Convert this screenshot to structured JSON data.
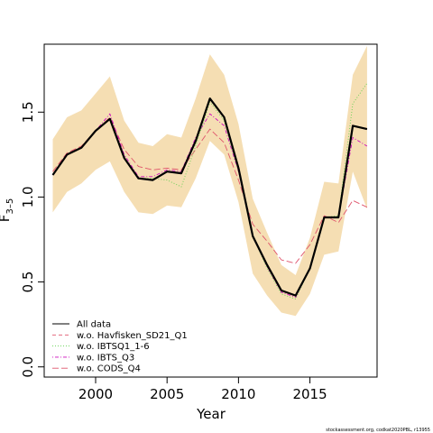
{
  "chart_data": {
    "type": "line",
    "xlabel": "Year",
    "ylabel": "F",
    "ylabel_sub": "3–5",
    "xlim": [
      1996.4,
      2019.7
    ],
    "ylim": [
      -0.06,
      1.9
    ],
    "x_ticks": [
      "2000",
      "2005",
      "2010",
      "2015"
    ],
    "y_ticks": [
      "0.0",
      "0.5",
      "1.0",
      "1.5"
    ],
    "x": [
      1997,
      1998,
      1999,
      2000,
      2001,
      2002,
      2003,
      2004,
      2005,
      2006,
      2007,
      2008,
      2009,
      2010,
      2011,
      2012,
      2013,
      2014,
      2015,
      2016,
      2017,
      2018,
      2019
    ],
    "band": {
      "color": "#F5DEB3",
      "upper": [
        1.34,
        1.47,
        1.51,
        1.61,
        1.71,
        1.45,
        1.32,
        1.3,
        1.37,
        1.35,
        1.58,
        1.84,
        1.72,
        1.43,
        0.99,
        0.79,
        0.6,
        0.54,
        0.76,
        1.09,
        1.08,
        1.72,
        1.89
      ],
      "lower": [
        0.91,
        1.03,
        1.08,
        1.16,
        1.21,
        1.03,
        0.91,
        0.9,
        0.95,
        0.94,
        1.11,
        1.33,
        1.25,
        0.97,
        0.55,
        0.42,
        0.32,
        0.3,
        0.43,
        0.66,
        0.68,
        1.15,
        0.93
      ]
    },
    "series": [
      {
        "name": "All data",
        "color": "#000000",
        "values": [
          1.13,
          1.25,
          1.29,
          1.39,
          1.46,
          1.23,
          1.11,
          1.1,
          1.15,
          1.14,
          1.33,
          1.58,
          1.47,
          1.17,
          0.77,
          0.6,
          0.45,
          0.42,
          0.58,
          0.88,
          0.88,
          1.42,
          1.4
        ]
      },
      {
        "name": "w.o. Havfisken_SD21_Q1",
        "color": "#DF536B",
        "values": [
          1.13,
          1.25,
          1.29,
          1.39,
          1.46,
          1.23,
          1.11,
          1.1,
          1.15,
          1.14,
          1.33,
          1.58,
          1.47,
          1.17,
          0.77,
          0.6,
          0.45,
          0.42,
          0.58,
          0.88,
          0.88,
          1.42,
          1.4
        ]
      },
      {
        "name": "w.o. IBTSQ1_1-6",
        "color": "#61D04F",
        "values": [
          1.13,
          1.25,
          1.29,
          1.39,
          1.46,
          1.23,
          1.11,
          1.11,
          1.1,
          1.06,
          1.3,
          1.56,
          1.45,
          1.15,
          0.77,
          0.58,
          0.43,
          0.4,
          0.58,
          0.88,
          0.89,
          1.55,
          1.67
        ]
      },
      {
        "name": "w.o. IBTS_Q3",
        "color": "#CD0BBC",
        "values": [
          1.13,
          1.25,
          1.29,
          1.39,
          1.49,
          1.25,
          1.12,
          1.12,
          1.16,
          1.15,
          1.35,
          1.49,
          1.42,
          1.15,
          0.77,
          0.59,
          0.44,
          0.41,
          0.58,
          0.88,
          0.88,
          1.35,
          1.3
        ]
      },
      {
        "name": "w.o. CODS_Q4",
        "color": "#DF536B",
        "values": [
          1.15,
          1.26,
          1.3,
          1.39,
          1.47,
          1.28,
          1.18,
          1.16,
          1.17,
          1.16,
          1.28,
          1.4,
          1.32,
          1.1,
          0.84,
          0.74,
          0.63,
          0.61,
          0.72,
          0.89,
          0.85,
          0.98,
          0.94
        ]
      }
    ],
    "legend": {
      "position": "bottom-left",
      "frame": false
    },
    "grid": false
  },
  "footer": {
    "text": "stockassessment.org, codkat2020PBL, r13955"
  }
}
